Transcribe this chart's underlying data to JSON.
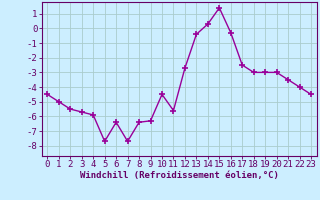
{
  "x": [
    0,
    1,
    2,
    3,
    4,
    5,
    6,
    7,
    8,
    9,
    10,
    11,
    12,
    13,
    14,
    15,
    16,
    17,
    18,
    19,
    20,
    21,
    22,
    23
  ],
  "y": [
    -4.5,
    -5.0,
    -5.5,
    -5.7,
    -5.9,
    -7.7,
    -6.4,
    -7.7,
    -6.4,
    -6.3,
    -4.5,
    -5.6,
    -2.7,
    -0.4,
    0.3,
    1.4,
    -0.3,
    -2.5,
    -3.0,
    -3.0,
    -3.0,
    -3.5,
    -4.0,
    -4.5
  ],
  "line_color": "#990099",
  "marker": "+",
  "marker_size": 4,
  "marker_lw": 1.2,
  "bg_color": "#cceeff",
  "grid_color": "#aacccc",
  "xlabel": "Windchill (Refroidissement éolien,°C)",
  "xlim": [
    -0.5,
    23.5
  ],
  "ylim": [
    -8.7,
    1.8
  ],
  "yticks": [
    1,
    0,
    -1,
    -2,
    -3,
    -4,
    -5,
    -6,
    -7,
    -8
  ],
  "xticks": [
    0,
    1,
    2,
    3,
    4,
    5,
    6,
    7,
    8,
    9,
    10,
    11,
    12,
    13,
    14,
    15,
    16,
    17,
    18,
    19,
    20,
    21,
    22,
    23
  ],
  "tick_color": "#660066",
  "label_color": "#660066",
  "font_size": 6.5,
  "xlabel_fontsize": 6.5,
  "line_width": 1.0
}
